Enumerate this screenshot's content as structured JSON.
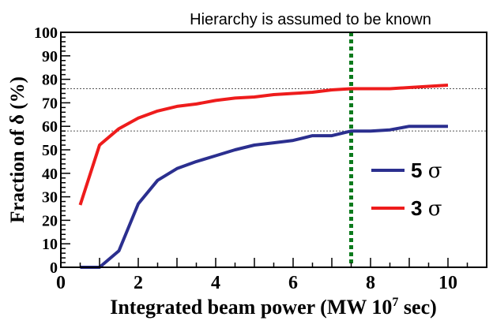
{
  "chart_data": {
    "type": "line",
    "title": "Hierarchy is assumed to be known",
    "xlabel": "Integrated beam power (MW 10",
    "xlabel_sup": "7",
    "xlabel_end": " sec)",
    "ylabel": "Fraction of  δ (%)",
    "xlim": [
      0,
      11
    ],
    "ylim": [
      0,
      100
    ],
    "x_ticks": [
      0,
      2,
      4,
      6,
      8,
      10
    ],
    "y_ticks": [
      0,
      10,
      20,
      30,
      40,
      50,
      60,
      70,
      80,
      90,
      100
    ],
    "grid": false,
    "legend_position": "right",
    "series": [
      {
        "name": "5 σ",
        "legend_num": "5",
        "legend_sym": "σ",
        "color": "#2b2f8f",
        "x": [
          0.5,
          1.0,
          1.5,
          2.0,
          2.5,
          3.0,
          3.5,
          4.0,
          4.5,
          5.0,
          5.5,
          6.0,
          6.5,
          7.0,
          7.5,
          8.0,
          8.5,
          9.0,
          9.5,
          10.0
        ],
        "y": [
          0,
          0,
          7,
          27,
          37,
          42,
          45,
          47.5,
          50,
          52,
          53,
          54,
          56,
          56,
          58,
          58,
          58.5,
          60,
          60,
          60
        ]
      },
      {
        "name": "3 σ",
        "legend_num": "3",
        "legend_sym": "σ",
        "color": "#ee1c1c",
        "x": [
          0.5,
          1.0,
          1.5,
          2.0,
          2.5,
          3.0,
          3.5,
          4.0,
          4.5,
          5.0,
          5.5,
          6.0,
          6.5,
          7.0,
          7.5,
          8.0,
          8.5,
          9.0,
          9.5,
          10.0
        ],
        "y": [
          26.5,
          52,
          59,
          63.5,
          66.5,
          68.5,
          69.5,
          71,
          72,
          72.5,
          73.5,
          74,
          74.5,
          75.5,
          76,
          76,
          76,
          76.5,
          77,
          77.5
        ]
      }
    ],
    "reference_lines": {
      "horizontal": [
        76,
        58
      ],
      "horizontal_color": "#555555",
      "vertical": 7.5,
      "vertical_color": "#0b7a1c"
    }
  }
}
